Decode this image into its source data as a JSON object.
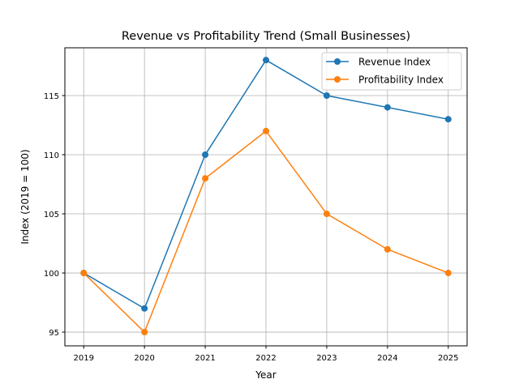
{
  "chart_data": {
    "type": "line",
    "title": "Revenue vs Profitability Trend (Small Businesses)",
    "xlabel": "Year",
    "ylabel": "Index (2019 = 100)",
    "x": [
      "2019",
      "2020",
      "2021",
      "2022",
      "2023",
      "2024",
      "2025"
    ],
    "x_values": [
      2019,
      2020,
      2021,
      2022,
      2023,
      2024,
      2025
    ],
    "xlim": [
      2018.69,
      2025.31
    ],
    "ylim": [
      93.84,
      119.04
    ],
    "yticks": [
      95,
      100,
      105,
      110,
      115
    ],
    "grid": true,
    "legend_position": "top-right",
    "series": [
      {
        "name": "Revenue Index",
        "color": "#1f77b4",
        "marker": "circle",
        "values": [
          100,
          97,
          110,
          118,
          115,
          114,
          113
        ]
      },
      {
        "name": "Profitability Index",
        "color": "#ff7f0e",
        "marker": "circle",
        "values": [
          100,
          95,
          108,
          112,
          105,
          102,
          100
        ]
      }
    ]
  }
}
